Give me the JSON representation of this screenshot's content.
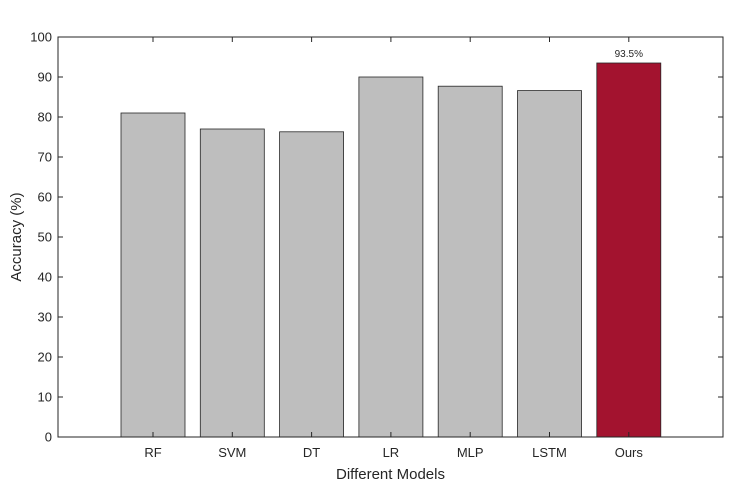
{
  "chart_data": {
    "type": "bar",
    "categories": [
      "RF",
      "SVM",
      "DT",
      "LR",
      "MLP",
      "LSTM",
      "Ours"
    ],
    "values": [
      81.0,
      77.0,
      76.3,
      90.0,
      87.7,
      86.6,
      93.5
    ],
    "xlabel": "Different Models",
    "ylabel": "Accuracy (%)",
    "ylim": [
      0,
      100
    ],
    "yticks": [
      0,
      10,
      20,
      30,
      40,
      50,
      60,
      70,
      80,
      90,
      100
    ],
    "grid": false,
    "legend": "none",
    "bar_colors": [
      "#bebebe",
      "#bebebe",
      "#bebebe",
      "#bebebe",
      "#bebebe",
      "#bebebe",
      "#a3132f"
    ],
    "data_labels": [
      {
        "category": "Ours",
        "text": "93.5%"
      }
    ]
  }
}
